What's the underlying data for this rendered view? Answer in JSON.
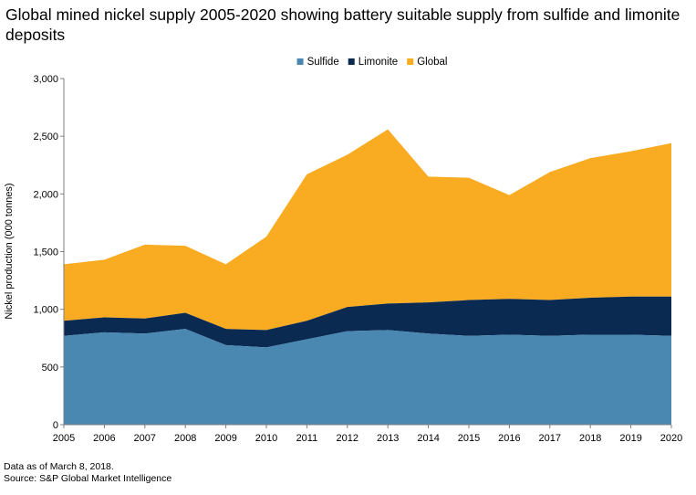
{
  "chart_data": {
    "type": "area",
    "title": "Global mined nickel supply 2005-2020 showing battery suitable supply from sulfide and limonite deposits",
    "ylabel": "Nickel production (000 tonnes)",
    "xlabel": "",
    "ylim": [
      0,
      3000
    ],
    "yticks": [
      0,
      500,
      1000,
      1500,
      2000,
      2500,
      3000
    ],
    "ytick_labels": [
      "0",
      "500",
      "1,000",
      "1,500",
      "2,000",
      "2,500",
      "3,000"
    ],
    "categories": [
      "2005",
      "2006",
      "2007",
      "2008",
      "2009",
      "2010",
      "2011",
      "2012",
      "2013",
      "2014",
      "2015",
      "2016",
      "2017",
      "2018",
      "2019",
      "2020"
    ],
    "stacking": "cumulative",
    "legend_position": "top-center",
    "grid": false,
    "series": [
      {
        "name": "Sulfide",
        "color": "#4a88b2",
        "values": [
          770,
          800,
          790,
          830,
          690,
          670,
          740,
          810,
          820,
          790,
          770,
          780,
          770,
          780,
          780,
          770
        ]
      },
      {
        "name": "Limonite",
        "color": "#0a2a52",
        "values": [
          130,
          130,
          130,
          140,
          140,
          150,
          160,
          210,
          230,
          270,
          310,
          310,
          310,
          320,
          330,
          340
        ]
      },
      {
        "name": "Global",
        "color": "#f9ab21",
        "values": [
          490,
          500,
          640,
          580,
          560,
          810,
          1270,
          1320,
          1510,
          1090,
          1060,
          900,
          1110,
          1210,
          1260,
          1330
        ]
      }
    ]
  },
  "footnotes": {
    "line1": "Data as of March 8, 2018.",
    "line2": "Source: S&P Global Market Intelligence"
  }
}
